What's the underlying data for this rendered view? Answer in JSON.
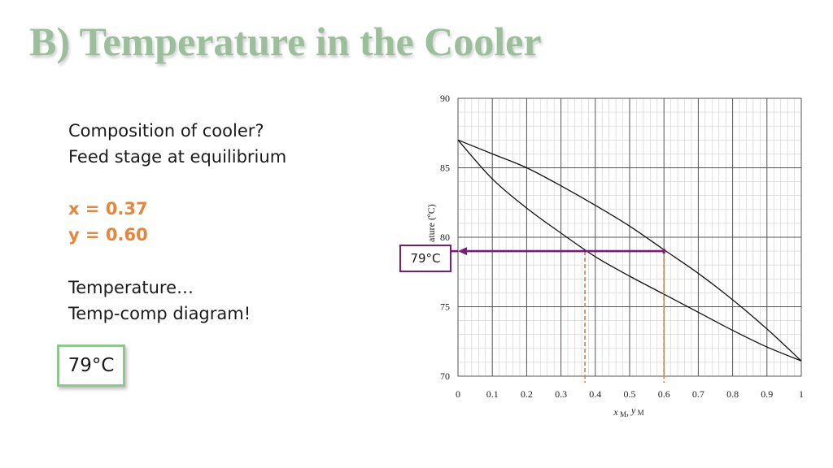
{
  "slide": {
    "title": "B) Temperature in the Cooler",
    "lines": {
      "q1": "Composition of cooler?",
      "q2": "Feed stage at equilibrium",
      "x": "x = 0.37",
      "y": "y = 0.60",
      "t1": "Temperature…",
      "t2": "Temp-comp diagram!"
    },
    "answer": "79°C",
    "callout": "79°C",
    "accent_color": "#e8853a",
    "title_color": "#9bbf9b",
    "arrow_color": "#7b1a7b"
  },
  "chart_data": {
    "type": "line",
    "xlim": [
      0,
      1
    ],
    "ylim": [
      70,
      90
    ],
    "x_ticks": [
      "0",
      "0.1",
      "0.2",
      "0.3",
      "0.4",
      "0.5",
      "0.6",
      "0.7",
      "0.8",
      "0.9",
      "1"
    ],
    "y_ticks": [
      "70",
      "75",
      "80",
      "85",
      "90"
    ],
    "xlabel": "x_M, y_M",
    "ylabel_visible": "ature (ºC)",
    "grid": true,
    "series": [
      {
        "x": [
          0,
          0.1,
          0.2,
          0.3,
          0.4,
          0.5,
          0.6,
          0.7,
          0.8,
          0.9,
          1.0
        ],
        "y": [
          87.0,
          84.2,
          82.1,
          80.3,
          78.6,
          77.2,
          75.9,
          74.6,
          73.3,
          72.1,
          71.1
        ]
      },
      {
        "x": [
          0,
          0.1,
          0.2,
          0.3,
          0.4,
          0.5,
          0.6,
          0.7,
          0.8,
          0.9,
          1.0
        ],
        "y": [
          87.0,
          86.0,
          85.0,
          83.7,
          82.3,
          80.8,
          79.1,
          77.4,
          75.5,
          73.4,
          71.1
        ]
      }
    ],
    "annotations": {
      "x_liquid": 0.37,
      "y_vapor": 0.6,
      "temperature": 79
    }
  }
}
